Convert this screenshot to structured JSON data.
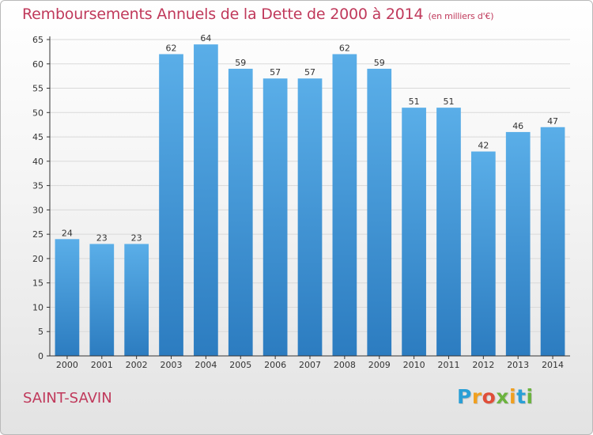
{
  "chart_title": "Remboursements Annuels de la Dette de 2000 à 2014",
  "chart_unit": "(en milliers d'€)",
  "commune_name": "SAINT-SAVIN",
  "logo_text": "Proxiti",
  "colors": {
    "title": "#c0395b",
    "bar_top": "#5aaee8",
    "bar_bottom": "#2c7cc0",
    "axis": "#333333",
    "grid": "#d9d9d9"
  },
  "chart_data": {
    "type": "bar",
    "categories": [
      "2000",
      "2001",
      "2002",
      "2003",
      "2004",
      "2005",
      "2006",
      "2007",
      "2008",
      "2009",
      "2010",
      "2011",
      "2012",
      "2013",
      "2014"
    ],
    "values": [
      24,
      23,
      23,
      62,
      64,
      59,
      57,
      57,
      62,
      59,
      51,
      51,
      42,
      46,
      47
    ],
    "title": "Remboursements Annuels de la Dette de 2000 à 2014",
    "ylim": [
      0,
      65
    ],
    "yticks": [
      0,
      5,
      10,
      15,
      20,
      25,
      30,
      35,
      40,
      45,
      50,
      55,
      60,
      65
    ],
    "grid": true,
    "data_labels": true
  }
}
